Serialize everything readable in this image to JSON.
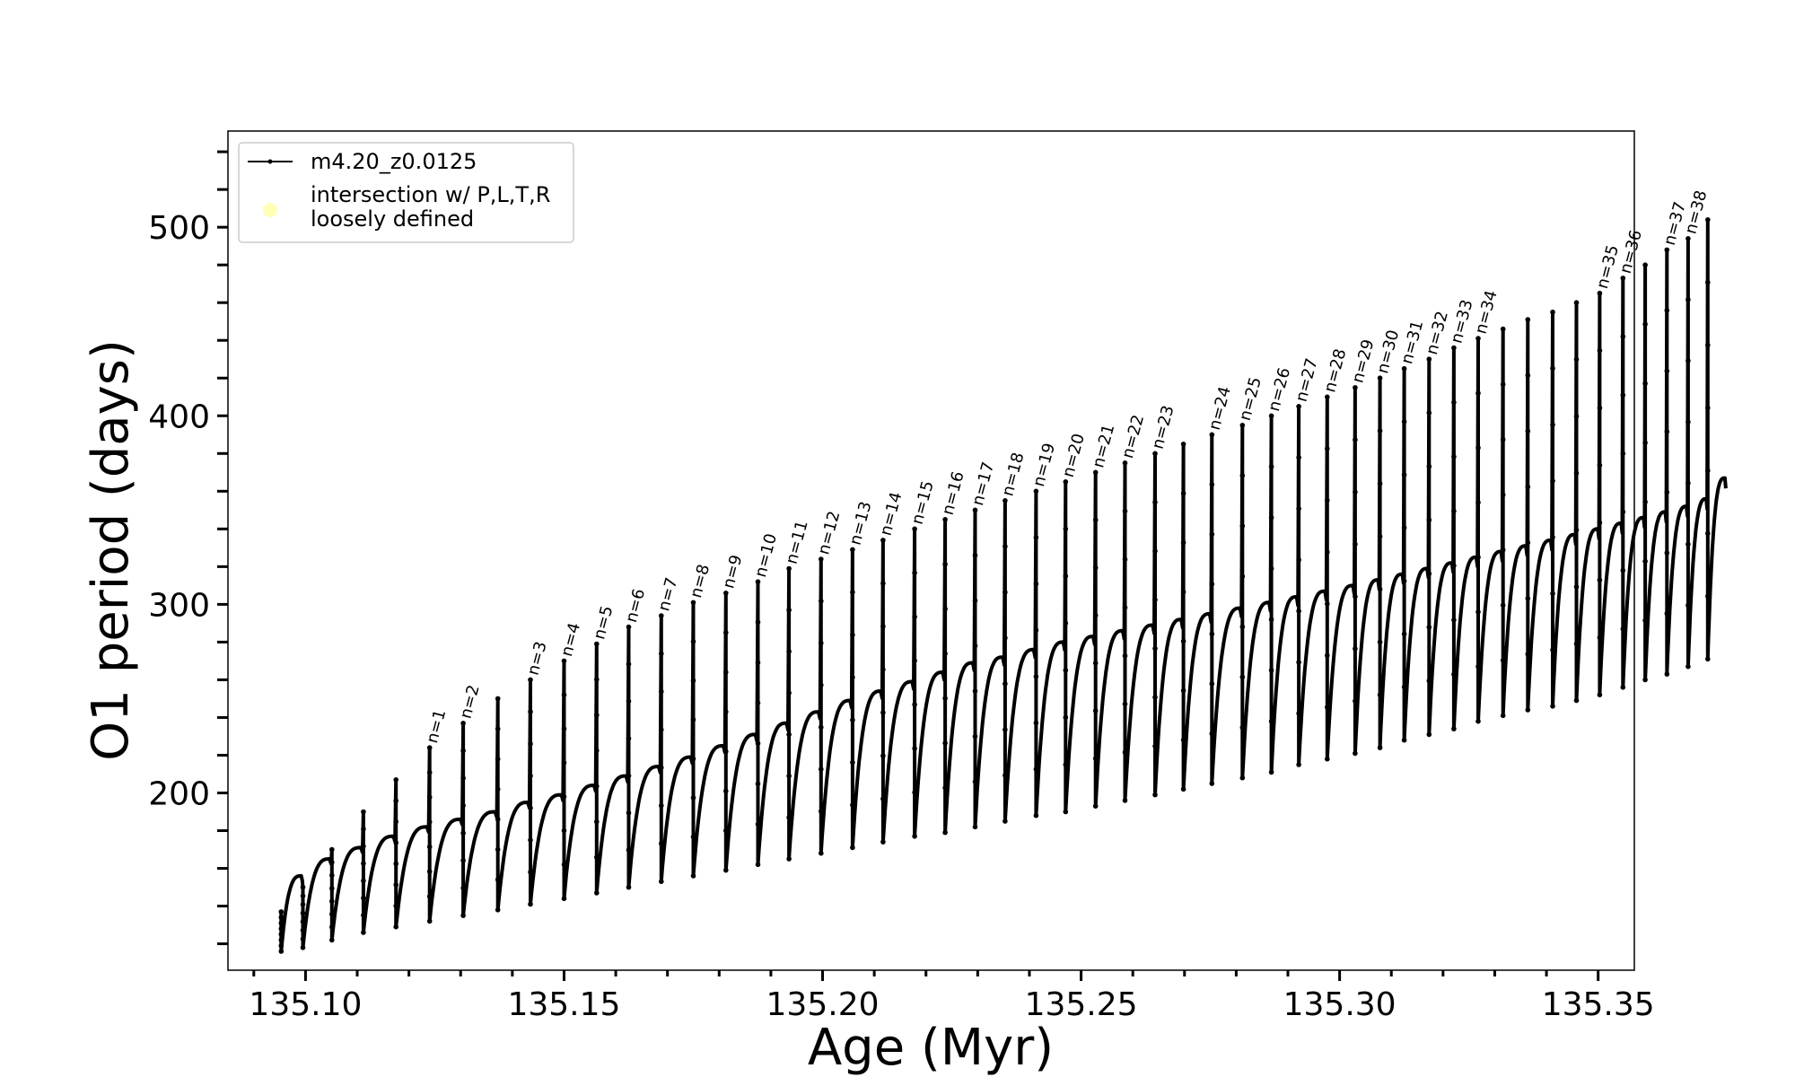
{
  "chart_data": {
    "type": "line",
    "xlabel": "Age (Myr)",
    "ylabel": "O1 period (days)",
    "xlim": [
      135.085,
      135.357
    ],
    "ylim": [
      106,
      551
    ],
    "x_ticks": [
      {
        "value": 135.1,
        "label": "135.10"
      },
      {
        "value": 135.15,
        "label": "135.15"
      },
      {
        "value": 135.2,
        "label": "135.20"
      },
      {
        "value": 135.25,
        "label": "135.25"
      },
      {
        "value": 135.3,
        "label": "135.30"
      },
      {
        "value": 135.35,
        "label": "135.35"
      }
    ],
    "y_ticks": [
      {
        "value": 200,
        "label": "200"
      },
      {
        "value": 300,
        "label": "300"
      },
      {
        "value": 400,
        "label": "400"
      },
      {
        "value": 500,
        "label": "500"
      }
    ],
    "y_minor_ticks": [
      120,
      140,
      160,
      180,
      220,
      240,
      260,
      280,
      320,
      340,
      360,
      380,
      420,
      440,
      460,
      480,
      520,
      540
    ],
    "x_minor_ticks": [
      135.09,
      135.11,
      135.12,
      135.13,
      135.14,
      135.16,
      135.17,
      135.18,
      135.19,
      135.21,
      135.22,
      135.23,
      135.24,
      135.26,
      135.27,
      135.28,
      135.29,
      135.31,
      135.32,
      135.33,
      135.34
    ],
    "grid": false,
    "legend": {
      "placement": "top-left",
      "entries": [
        {
          "label": "m4.20_z0.0125",
          "style": "line-marker",
          "color": "#000000"
        },
        {
          "label": "intersection w/ P,L,T,R",
          "label2": "loosely defined",
          "style": "dot",
          "color": "#ffff99"
        }
      ]
    },
    "series": [
      {
        "name": "m4.20_z0.0125",
        "color": "#000000",
        "pulses": [
          {
            "age": 135.0953,
            "peak": 137,
            "min": 116,
            "plateau": 156,
            "cycle_end": 135.0995
          },
          {
            "age": 135.0995,
            "peak": 150,
            "min": 118,
            "plateau": 165,
            "cycle_end": 135.1051
          },
          {
            "age": 135.1051,
            "peak": 170,
            "min": 122,
            "plateau": 171,
            "cycle_end": 135.1112
          },
          {
            "age": 135.1112,
            "peak": 190,
            "min": 126,
            "plateau": 177,
            "cycle_end": 135.1175
          },
          {
            "age": 135.1175,
            "peak": 207,
            "min": 129,
            "plateau": 182,
            "cycle_end": 135.124
          },
          {
            "age": 135.124,
            "peak": 224,
            "min": 132,
            "plateau": 186,
            "cycle_end": 135.1305,
            "label": "n=1"
          },
          {
            "age": 135.1305,
            "peak": 237,
            "min": 135,
            "plateau": 190,
            "cycle_end": 135.1372,
            "label": "n=2"
          },
          {
            "age": 135.1372,
            "peak": 250,
            "min": 138,
            "plateau": 195,
            "cycle_end": 135.1435
          },
          {
            "age": 135.1435,
            "peak": 260,
            "min": 141,
            "plateau": 199,
            "cycle_end": 135.15,
            "label": "n=3"
          },
          {
            "age": 135.15,
            "peak": 270,
            "min": 144,
            "plateau": 204,
            "cycle_end": 135.1563,
            "label": "n=4"
          },
          {
            "age": 135.1563,
            "peak": 279,
            "min": 147,
            "plateau": 209,
            "cycle_end": 135.1625,
            "label": "n=5"
          },
          {
            "age": 135.1625,
            "peak": 288,
            "min": 150,
            "plateau": 214,
            "cycle_end": 135.1688,
            "label": "n=6"
          },
          {
            "age": 135.1688,
            "peak": 294,
            "min": 153,
            "plateau": 219,
            "cycle_end": 135.175,
            "label": "n=7"
          },
          {
            "age": 135.175,
            "peak": 301,
            "min": 156,
            "plateau": 225,
            "cycle_end": 135.1813,
            "label": "n=8"
          },
          {
            "age": 135.1813,
            "peak": 306,
            "min": 159,
            "plateau": 231,
            "cycle_end": 135.1875,
            "label": "n=9"
          },
          {
            "age": 135.1875,
            "peak": 312,
            "min": 162,
            "plateau": 237,
            "cycle_end": 135.1935,
            "label": "n=10"
          },
          {
            "age": 135.1935,
            "peak": 319,
            "min": 165,
            "plateau": 243,
            "cycle_end": 135.1997,
            "label": "n=11"
          },
          {
            "age": 135.1997,
            "peak": 324,
            "min": 168,
            "plateau": 249,
            "cycle_end": 135.2058,
            "label": "n=12"
          },
          {
            "age": 135.2058,
            "peak": 329,
            "min": 171,
            "plateau": 254,
            "cycle_end": 135.2117,
            "label": "n=13"
          },
          {
            "age": 135.2117,
            "peak": 334,
            "min": 174,
            "plateau": 259,
            "cycle_end": 135.2178,
            "label": "n=14"
          },
          {
            "age": 135.2178,
            "peak": 340,
            "min": 177,
            "plateau": 264,
            "cycle_end": 135.2237,
            "label": "n=15"
          },
          {
            "age": 135.2237,
            "peak": 345,
            "min": 179,
            "plateau": 269,
            "cycle_end": 135.2295,
            "label": "n=16"
          },
          {
            "age": 135.2295,
            "peak": 350,
            "min": 182,
            "plateau": 272,
            "cycle_end": 135.2353,
            "label": "n=17"
          },
          {
            "age": 135.2353,
            "peak": 355,
            "min": 185,
            "plateau": 276,
            "cycle_end": 135.2413,
            "label": "n=18"
          },
          {
            "age": 135.2413,
            "peak": 360,
            "min": 188,
            "plateau": 280,
            "cycle_end": 135.247,
            "label": "n=19"
          },
          {
            "age": 135.247,
            "peak": 365,
            "min": 190,
            "plateau": 283,
            "cycle_end": 135.2528,
            "label": "n=20"
          },
          {
            "age": 135.2528,
            "peak": 370,
            "min": 193,
            "plateau": 286,
            "cycle_end": 135.2585,
            "label": "n=21"
          },
          {
            "age": 135.2585,
            "peak": 375,
            "min": 196,
            "plateau": 289,
            "cycle_end": 135.2643,
            "label": "n=22"
          },
          {
            "age": 135.2643,
            "peak": 380,
            "min": 199,
            "plateau": 292,
            "cycle_end": 135.2698,
            "label": "n=23"
          },
          {
            "age": 135.2698,
            "peak": 385,
            "min": 202,
            "plateau": 295,
            "cycle_end": 135.2753
          },
          {
            "age": 135.2753,
            "peak": 390,
            "min": 205,
            "plateau": 298,
            "cycle_end": 135.2812,
            "label": "n=24"
          },
          {
            "age": 135.2812,
            "peak": 395,
            "min": 208,
            "plateau": 301,
            "cycle_end": 135.2868,
            "label": "n=25"
          },
          {
            "age": 135.2868,
            "peak": 400,
            "min": 211,
            "plateau": 304,
            "cycle_end": 135.2921,
            "label": "n=26"
          },
          {
            "age": 135.2921,
            "peak": 405,
            "min": 215,
            "plateau": 307,
            "cycle_end": 135.2976,
            "label": "n=27"
          },
          {
            "age": 135.2976,
            "peak": 410,
            "min": 218,
            "plateau": 310,
            "cycle_end": 135.303,
            "label": "n=28"
          },
          {
            "age": 135.303,
            "peak": 415,
            "min": 221,
            "plateau": 313,
            "cycle_end": 135.3078,
            "label": "n=29"
          },
          {
            "age": 135.3078,
            "peak": 420,
            "min": 224,
            "plateau": 316,
            "cycle_end": 135.3125,
            "label": "n=30"
          },
          {
            "age": 135.3125,
            "peak": 425,
            "min": 228,
            "plateau": 319,
            "cycle_end": 135.3173,
            "label": "n=31"
          },
          {
            "age": 135.3173,
            "peak": 430,
            "min": 231,
            "plateau": 322,
            "cycle_end": 135.3221,
            "label": "n=32"
          },
          {
            "age": 135.3221,
            "peak": 436,
            "min": 234,
            "plateau": 325,
            "cycle_end": 135.3268,
            "label": "n=33"
          },
          {
            "age": 135.3268,
            "peak": 441,
            "min": 238,
            "plateau": 328,
            "cycle_end": 135.3316,
            "label": "n=34"
          },
          {
            "age": 135.3316,
            "peak": 446,
            "min": 241,
            "plateau": 331,
            "cycle_end": 135.3364
          },
          {
            "age": 135.3364,
            "peak": 451,
            "min": 244,
            "plateau": 334,
            "cycle_end": 135.3412
          },
          {
            "age": 135.3412,
            "peak": 455,
            "min": 246,
            "plateau": 337,
            "cycle_end": 135.3458
          },
          {
            "age": 135.3458,
            "peak": 460,
            "min": 249,
            "plateau": 340,
            "cycle_end": 135.3503
          },
          {
            "age": 135.3503,
            "peak": 465,
            "min": 252,
            "plateau": 343,
            "cycle_end": 135.3548,
            "label": "n=35"
          },
          {
            "age": 135.3548,
            "peak": 473,
            "min": 256,
            "plateau": 346,
            "cycle_end": 135.3591,
            "label": "n=36"
          },
          {
            "age": 135.3591,
            "peak": 480,
            "min": 260,
            "plateau": 349,
            "cycle_end": 135.3633
          },
          {
            "age": 135.3633,
            "peak": 488,
            "min": 263,
            "plateau": 352,
            "cycle_end": 135.3674,
            "label": "n=37"
          },
          {
            "age": 135.3674,
            "peak": 494,
            "min": 267,
            "plateau": 356,
            "cycle_end": 135.3712,
            "label": "n=38"
          },
          {
            "age": 135.3712,
            "peak": 504,
            "min": 271,
            "plateau": 367,
            "cycle_end": 135.3748
          }
        ]
      }
    ]
  }
}
